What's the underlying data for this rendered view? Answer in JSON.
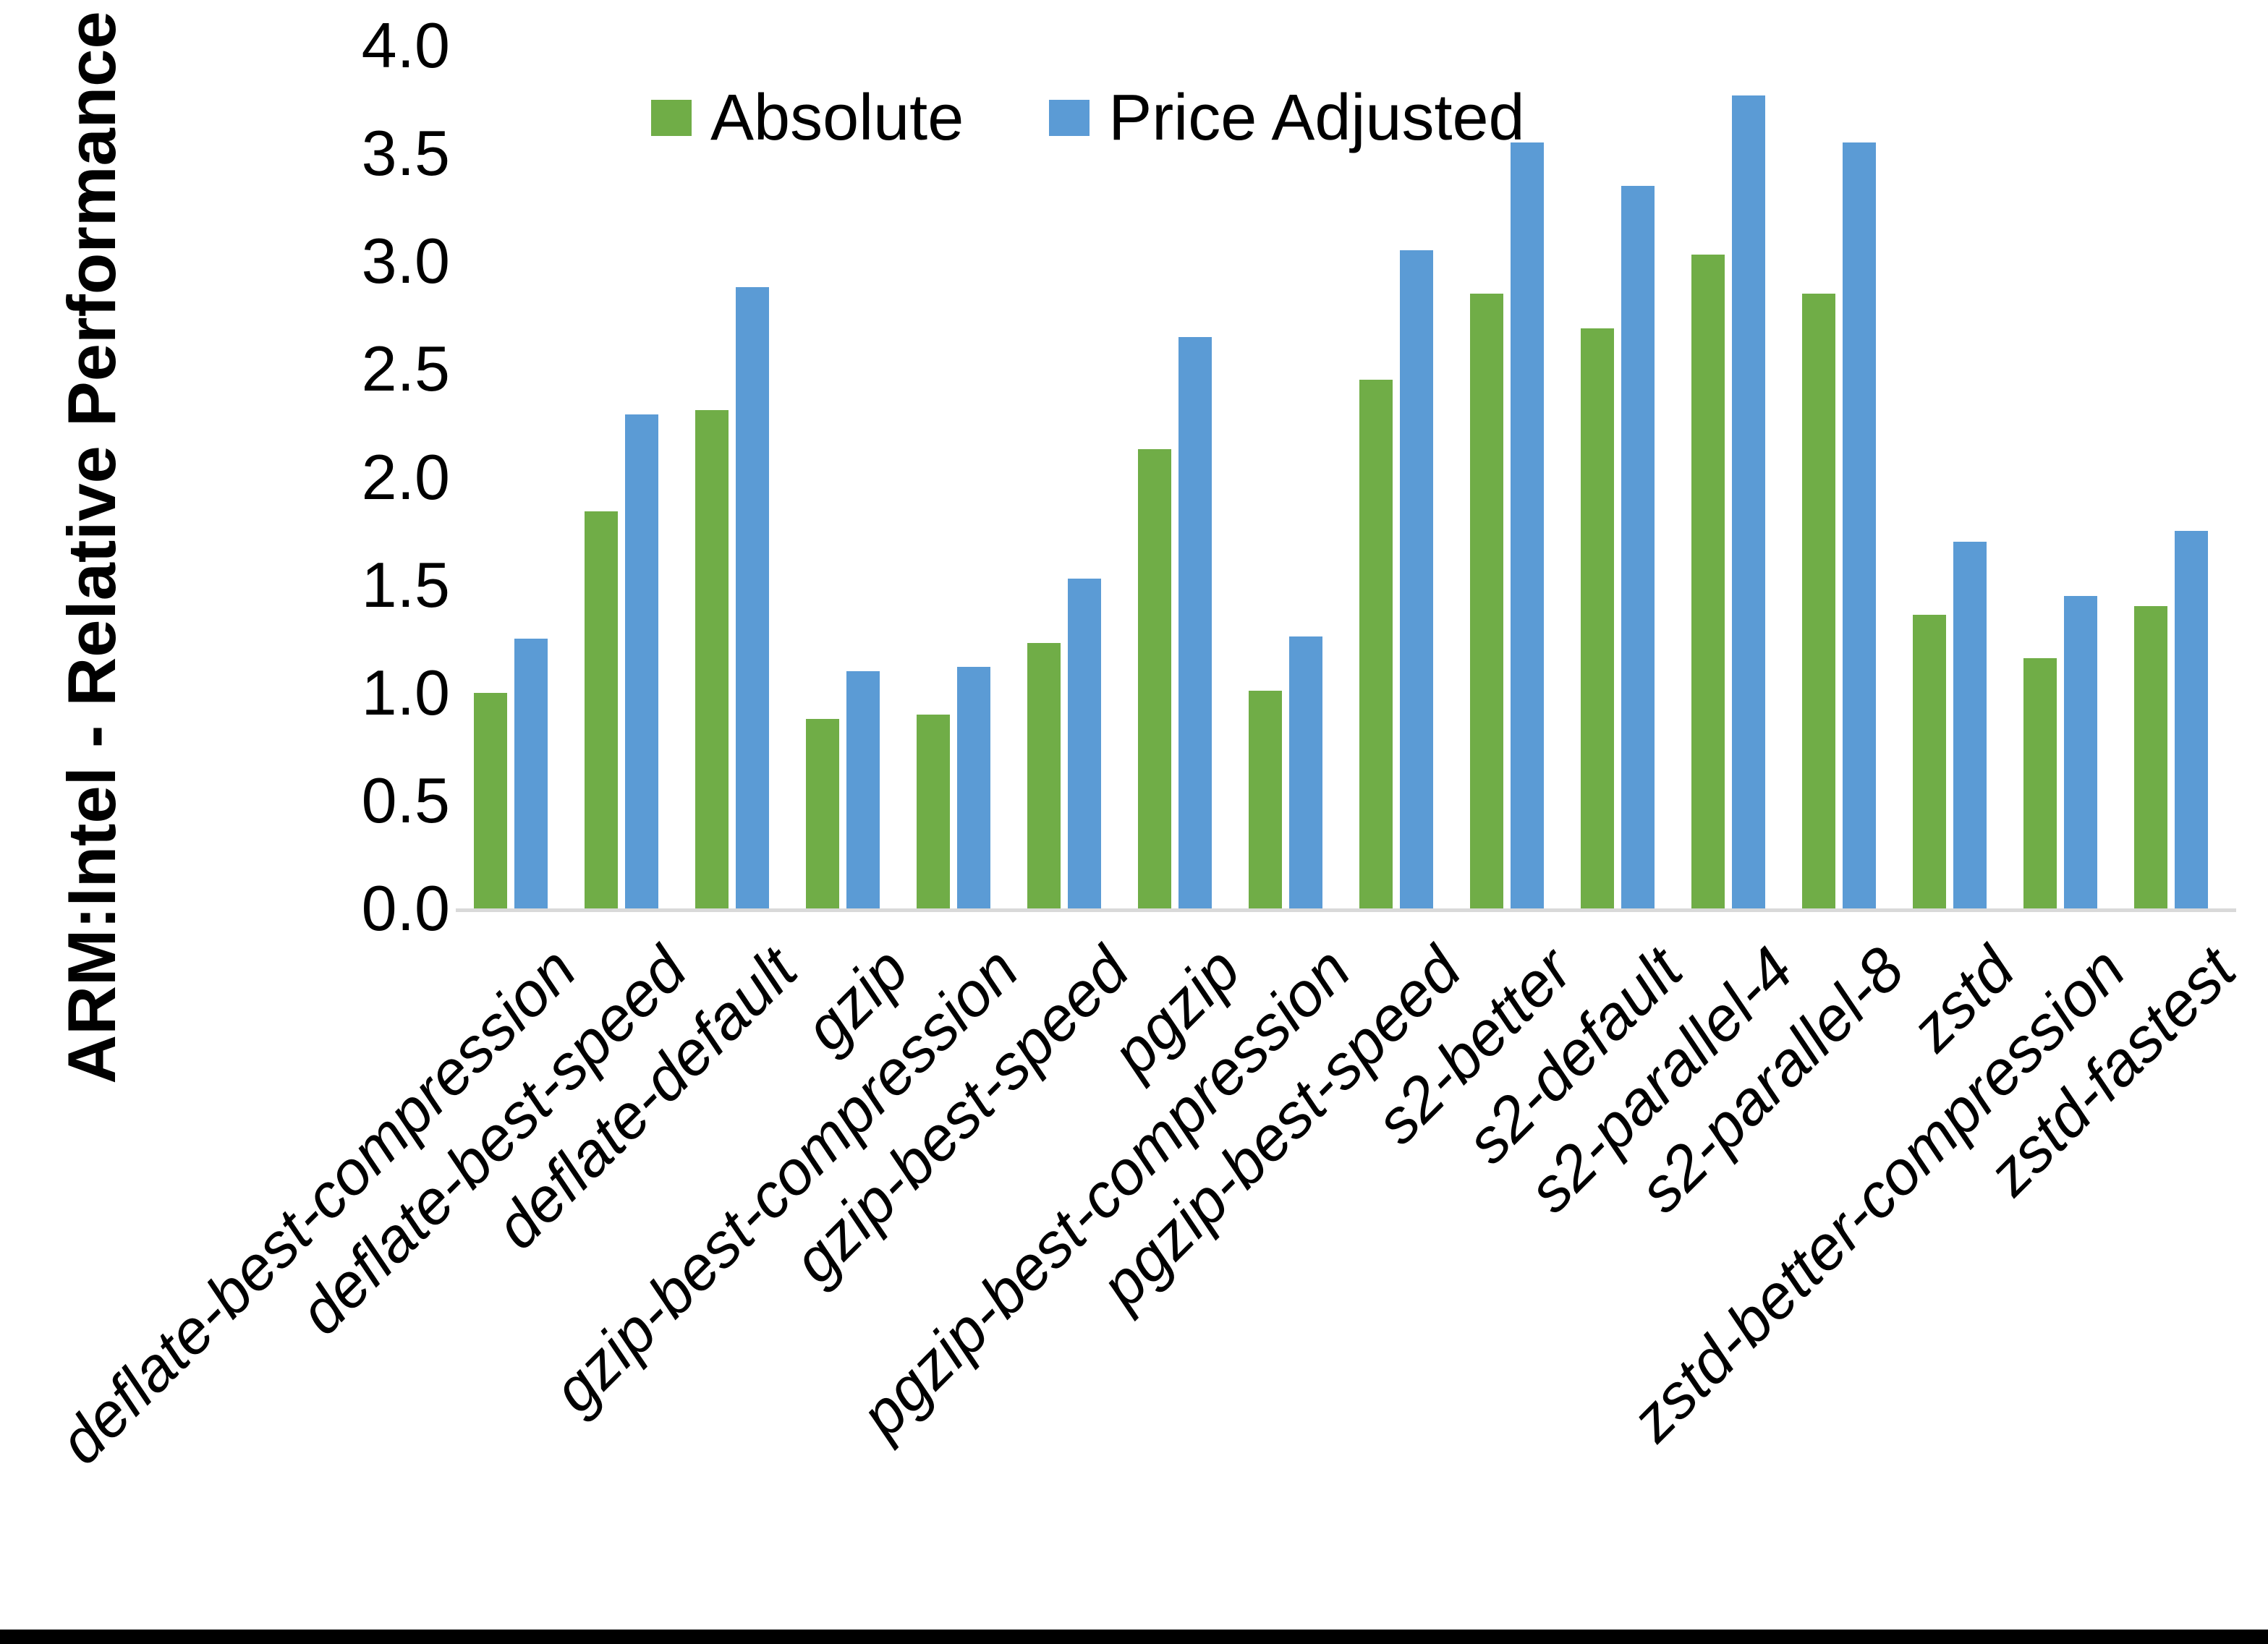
{
  "chart_data": {
    "type": "bar",
    "title": "",
    "xlabel": "",
    "ylabel": "ARM:Intel - Relative Performance",
    "ylim": [
      0.0,
      4.0
    ],
    "ytick_step": 0.5,
    "ytick_labels": [
      "0.0",
      "0.5",
      "1.0",
      "1.5",
      "2.0",
      "2.5",
      "3.0",
      "3.5",
      "4.0"
    ],
    "grid": false,
    "legend_position": "top-center",
    "axis_line_color": "#d9d9d9",
    "categories": [
      "deflate-best-compression",
      "deflate-best-speed",
      "deflate-default",
      "gzip",
      "gzip-best-compression",
      "gzip-best-speed",
      "pgzip",
      "pgzip-best-compression",
      "pgzip-best-speed",
      "s2-better",
      "s2-default",
      "s2-parallel-4",
      "s2-parallel-8",
      "zstd",
      "zstd-better-compression",
      "zstd-fastest"
    ],
    "series": [
      {
        "name": "Absolute",
        "color": "#70ad47",
        "values": [
          1.0,
          1.84,
          2.31,
          0.88,
          0.9,
          1.23,
          2.13,
          1.01,
          2.45,
          2.85,
          2.69,
          3.03,
          2.85,
          1.36,
          1.16,
          1.4
        ]
      },
      {
        "name": "Price Adjusted",
        "color": "#5b9bd5",
        "values": [
          1.25,
          2.29,
          2.88,
          1.1,
          1.12,
          1.53,
          2.65,
          1.26,
          3.05,
          3.55,
          3.35,
          3.77,
          3.55,
          1.7,
          1.45,
          1.75
        ]
      }
    ]
  }
}
